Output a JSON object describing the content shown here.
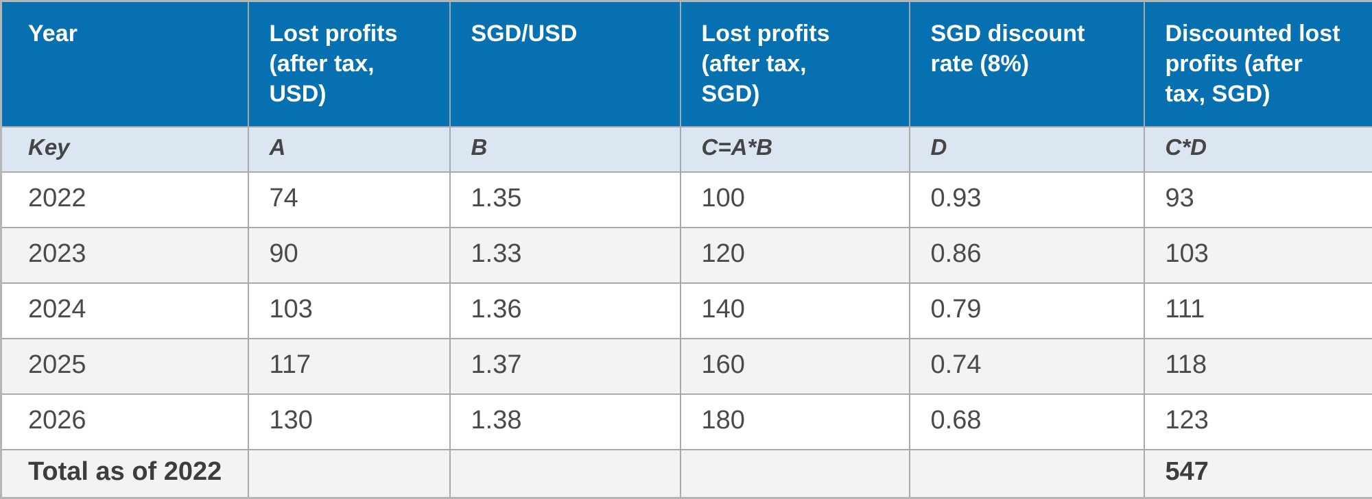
{
  "colors": {
    "header_bg": "#0670B0",
    "header_text": "#FFFFFF",
    "key_row_bg": "#DCE6F3",
    "stripe_bg": "#F3F3F3",
    "row_bg": "#FFFFFF",
    "border": "#A9A9A9",
    "body_text": "#4A4A4A"
  },
  "chart_data": {
    "type": "table",
    "columns": [
      "Year",
      "Lost profits\n(after tax,\nUSD)",
      "SGD/USD",
      "Lost profits\n(after tax,\nSGD)",
      "SGD discount\nrate (8%)",
      "Discounted lost\nprofits (after\ntax, SGD)"
    ],
    "key_row": [
      "Key",
      "A",
      "B",
      "C=A*B",
      "D",
      "C*D"
    ],
    "rows": [
      [
        "2022",
        "74",
        "1.35",
        "100",
        "0.93",
        "93"
      ],
      [
        "2023",
        "90",
        "1.33",
        "120",
        "0.86",
        "103"
      ],
      [
        "2024",
        "103",
        "1.36",
        "140",
        "0.79",
        "111"
      ],
      [
        "2025",
        "117",
        "1.37",
        "160",
        "0.74",
        "118"
      ],
      [
        "2026",
        "130",
        "1.38",
        "180",
        "0.68",
        "123"
      ]
    ],
    "total": {
      "label": "Total as of 2022",
      "value": "547"
    }
  }
}
